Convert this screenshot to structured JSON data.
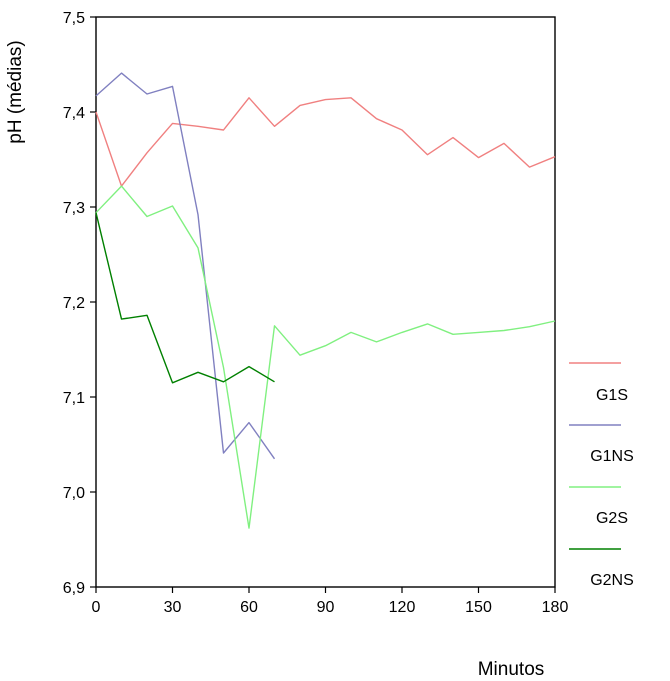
{
  "chart_data": {
    "type": "line",
    "title": "",
    "xlabel": "Minutos",
    "ylabel": "pH (médias)",
    "xlim": [
      0,
      180
    ],
    "ylim": [
      6.9,
      7.5
    ],
    "xticks": [
      "0",
      "30",
      "60",
      "90",
      "120",
      "150",
      "180"
    ],
    "xtick_values": [
      0,
      30,
      60,
      90,
      120,
      150,
      180
    ],
    "yticks": [
      "6,9",
      "7,0",
      "7,1",
      "7,2",
      "7,3",
      "7,4",
      "7,5"
    ],
    "ytick_values": [
      6.9,
      7.0,
      7.1,
      7.2,
      7.3,
      7.4,
      7.5
    ],
    "grid": false,
    "legend_position": "right",
    "legend_labels": [
      "G1S",
      "G1NS",
      "G2S",
      "G2NS"
    ],
    "series": [
      {
        "color": "#f08080",
        "x": [
          0,
          10,
          20,
          30,
          40,
          50,
          60,
          70,
          80,
          90,
          100,
          110,
          120,
          130,
          140,
          150,
          160,
          170,
          180
        ],
        "y": [
          7.4,
          7.322,
          7.357,
          7.388,
          7.385,
          7.381,
          7.415,
          7.385,
          7.407,
          7.413,
          7.415,
          7.393,
          7.381,
          7.355,
          7.373,
          7.352,
          7.367,
          7.342,
          7.353
        ]
      },
      {
        "color": "#8080c0",
        "x": [
          0,
          10,
          20,
          30,
          40,
          50,
          60,
          70
        ],
        "y": [
          7.417,
          7.441,
          7.419,
          7.427,
          7.292,
          7.041,
          7.073,
          7.035
        ]
      },
      {
        "color": "#80f080",
        "x": [
          0,
          10,
          20,
          30,
          40,
          50,
          60,
          70,
          80,
          90,
          100,
          110,
          120,
          130,
          140,
          150,
          160,
          170,
          180
        ],
        "y": [
          7.294,
          7.322,
          7.29,
          7.301,
          7.257,
          7.131,
          6.962,
          7.175,
          7.144,
          7.154,
          7.168,
          7.158,
          7.168,
          7.177,
          7.166,
          7.168,
          7.17,
          7.174,
          7.18
        ]
      },
      {
        "color": "#008000",
        "x": [
          0,
          10,
          20,
          30,
          40,
          50,
          60,
          70
        ],
        "y": [
          7.294,
          7.182,
          7.186,
          7.115,
          7.126,
          7.116,
          7.132,
          7.116
        ]
      }
    ]
  }
}
